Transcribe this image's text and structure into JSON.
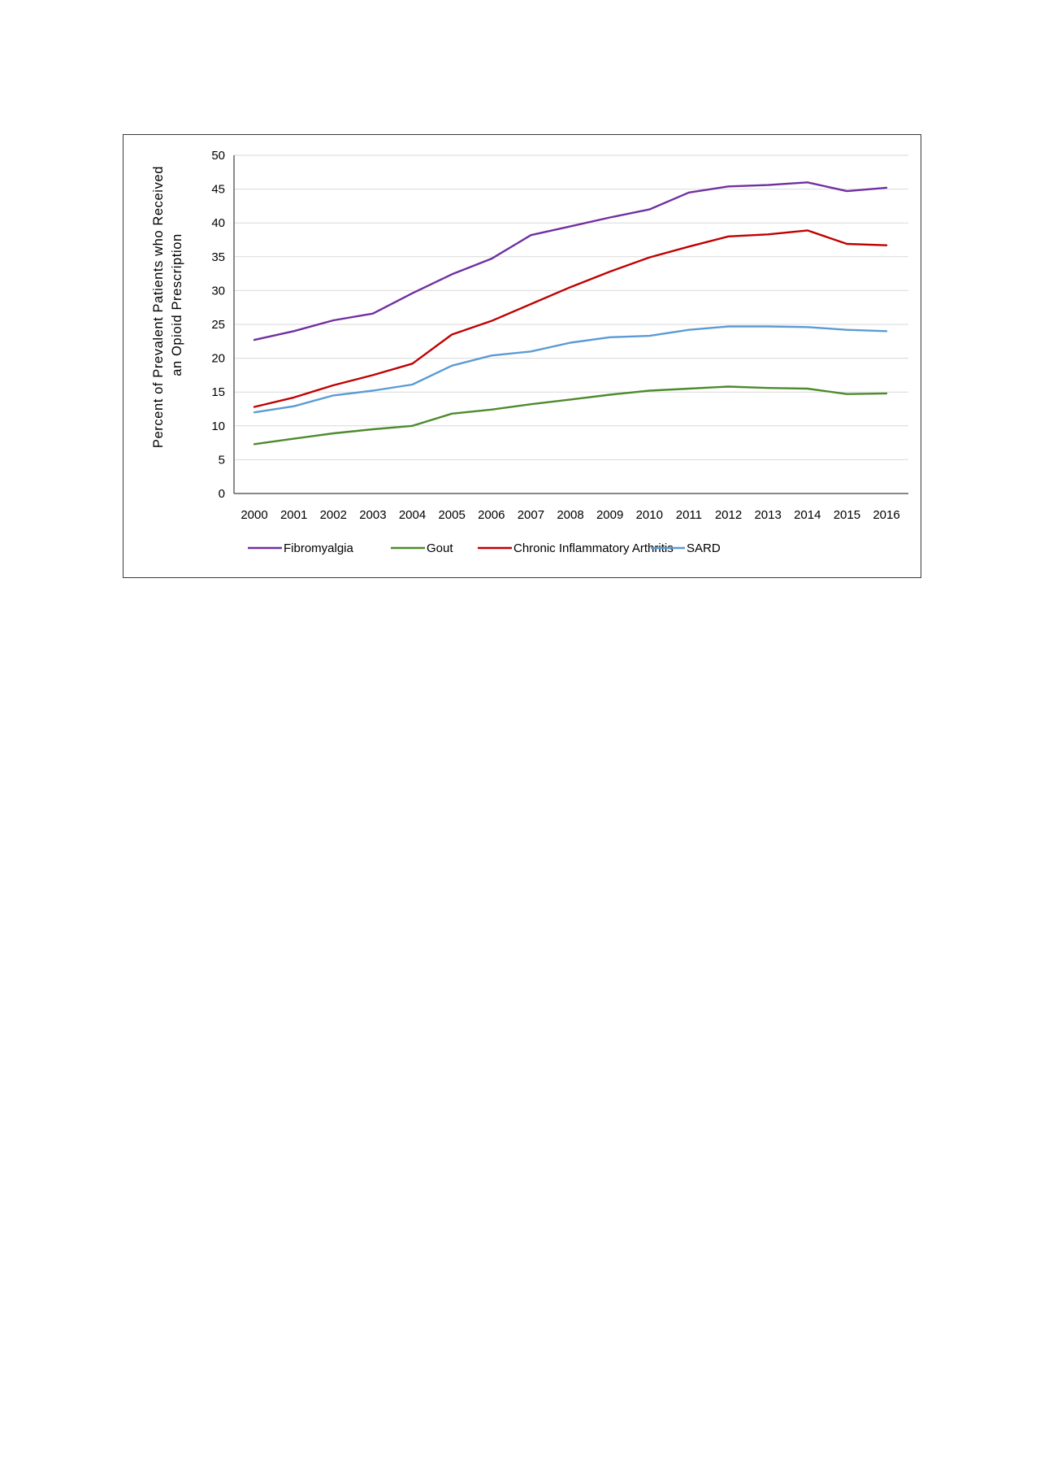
{
  "chart_data": {
    "type": "line",
    "title": "",
    "xlabel": "",
    "ylabel_lines": [
      "Percent of Prevalent Patients who Received",
      "an Opioid Prescription"
    ],
    "ylim": [
      0,
      50
    ],
    "yticks": [
      0,
      5,
      10,
      15,
      20,
      25,
      30,
      35,
      40,
      45,
      50
    ],
    "grid": "horizontal",
    "legend_position": "bottom",
    "x": [
      "2000",
      "2001",
      "2002",
      "2003",
      "2004",
      "2005",
      "2006",
      "2007",
      "2008",
      "2009",
      "2010",
      "2011",
      "2012",
      "2013",
      "2014",
      "2015",
      "2016"
    ],
    "series": [
      {
        "name": "Fibromyalgia",
        "color": "#7030a0",
        "values": [
          22.7,
          24.0,
          25.6,
          26.6,
          29.6,
          32.4,
          34.7,
          38.2,
          39.5,
          40.8,
          42.0,
          44.5,
          45.4,
          45.6,
          46.0,
          44.7,
          45.2
        ]
      },
      {
        "name": "Gout",
        "color": "#4e8a2e",
        "values": [
          7.3,
          8.1,
          8.9,
          9.5,
          10.0,
          11.8,
          12.4,
          13.2,
          13.9,
          14.6,
          15.2,
          15.5,
          15.8,
          15.6,
          15.5,
          14.7,
          14.8
        ]
      },
      {
        "name": "Chronic Inflammatory Arthritis",
        "color": "#c00000",
        "values": [
          12.8,
          14.2,
          16.0,
          17.5,
          19.2,
          23.5,
          25.5,
          28.0,
          30.5,
          32.8,
          34.9,
          36.5,
          38.0,
          38.3,
          38.9,
          36.9,
          36.7
        ]
      },
      {
        "name": "SARD",
        "color": "#5b9bd5",
        "values": [
          12.0,
          12.9,
          14.5,
          15.2,
          16.1,
          18.9,
          20.4,
          21.0,
          22.3,
          23.1,
          23.3,
          24.2,
          24.7,
          24.7,
          24.6,
          24.2,
          24.0
        ]
      }
    ]
  }
}
